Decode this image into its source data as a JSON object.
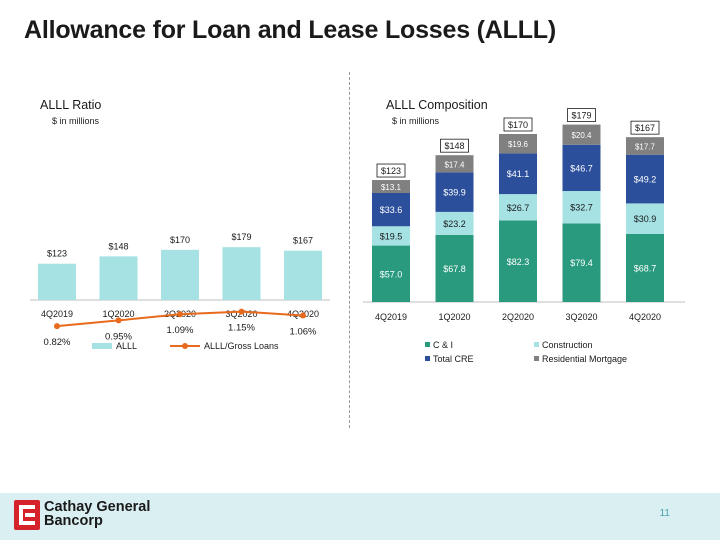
{
  "page": {
    "title": "Allowance for Loan and Lease Losses (ALLL)",
    "page_number": "11"
  },
  "footer": {
    "company_line1": "Cathay General",
    "company_line2": "Bancorp"
  },
  "colors": {
    "alll_bar": "#a6e1e4",
    "ratio_line": "#e86a1c",
    "c_and_i": "#2a9a7e",
    "construction": "#a6e1e4",
    "total_cre": "#2b4f9b",
    "residential_mortgage": "#808080",
    "footer_bg": "#d9eff2",
    "logo_red": "#d6232b"
  },
  "chart_data": [
    {
      "type": "bar",
      "title": "ALLL Ratio",
      "subtitle": "$ in millions",
      "categories": [
        "4Q2019",
        "1Q2020",
        "2Q2020",
        "3Q2020",
        "4Q2020"
      ],
      "series": [
        {
          "name": "ALLL",
          "kind": "bar",
          "values": [
            123,
            148,
            170,
            179,
            167
          ],
          "labels": [
            "$123",
            "$148",
            "$170",
            "$179",
            "$167"
          ]
        },
        {
          "name": "ALLL/Gross Loans",
          "kind": "line",
          "values": [
            0.82,
            0.95,
            1.09,
            1.15,
            1.06
          ],
          "labels": [
            "0.82%",
            "0.95%",
            "1.09%",
            "1.15%",
            "1.06%"
          ]
        }
      ],
      "legend": "bottom"
    },
    {
      "type": "bar",
      "stacked": true,
      "title": "ALLL Composition",
      "subtitle": "$ in millions",
      "categories": [
        "4Q2019",
        "1Q2020",
        "2Q2020",
        "3Q2020",
        "4Q2020"
      ],
      "series": [
        {
          "name": "C & I",
          "values": [
            57.0,
            67.8,
            82.3,
            79.4,
            68.7
          ],
          "labels": [
            "$57.0",
            "$67.8",
            "$82.3",
            "$79.4",
            "$68.7"
          ]
        },
        {
          "name": "Construction",
          "values": [
            19.5,
            23.2,
            26.7,
            32.7,
            30.9
          ],
          "labels": [
            "$19.5",
            "$23.2",
            "$26.7",
            "$32.7",
            "$30.9"
          ]
        },
        {
          "name": "Total CRE",
          "values": [
            33.6,
            39.9,
            41.1,
            46.7,
            49.2
          ],
          "labels": [
            "$33.6",
            "$39.9",
            "$41.1",
            "$46.7",
            "$49.2"
          ]
        },
        {
          "name": "Residential Mortgage",
          "values": [
            13.1,
            17.4,
            19.6,
            20.4,
            17.7
          ],
          "labels": [
            "$13.1",
            "$17.4",
            "$19.6",
            "$20.4",
            "$17.7"
          ]
        }
      ],
      "totals": [
        "$123",
        "$148",
        "$170",
        "$179",
        "$167"
      ],
      "legend": "bottom"
    }
  ]
}
